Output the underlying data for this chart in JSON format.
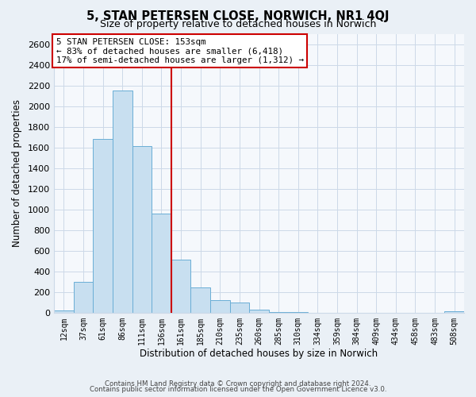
{
  "title": "5, STAN PETERSEN CLOSE, NORWICH, NR1 4QJ",
  "subtitle": "Size of property relative to detached houses in Norwich",
  "xlabel": "Distribution of detached houses by size in Norwich",
  "ylabel": "Number of detached properties",
  "bar_labels": [
    "12sqm",
    "37sqm",
    "61sqm",
    "86sqm",
    "111sqm",
    "136sqm",
    "161sqm",
    "185sqm",
    "210sqm",
    "235sqm",
    "260sqm",
    "285sqm",
    "310sqm",
    "334sqm",
    "359sqm",
    "384sqm",
    "409sqm",
    "434sqm",
    "458sqm",
    "483sqm",
    "508sqm"
  ],
  "bar_values": [
    20,
    295,
    1680,
    2150,
    1610,
    960,
    510,
    245,
    125,
    95,
    30,
    8,
    3,
    2,
    2,
    1,
    1,
    1,
    0,
    0,
    15
  ],
  "bar_color": "#c8dff0",
  "bar_edge_color": "#6aaed6",
  "vline_color": "#cc0000",
  "ylim": [
    0,
    2700
  ],
  "yticks": [
    0,
    200,
    400,
    600,
    800,
    1000,
    1200,
    1400,
    1600,
    1800,
    2000,
    2200,
    2400,
    2600
  ],
  "annotation_title": "5 STAN PETERSEN CLOSE: 153sqm",
  "annotation_line1": "← 83% of detached houses are smaller (6,418)",
  "annotation_line2": "17% of semi-detached houses are larger (1,312) →",
  "annotation_box_color": "#ffffff",
  "annotation_box_edge": "#cc0000",
  "footer1": "Contains HM Land Registry data © Crown copyright and database right 2024.",
  "footer2": "Contains public sector information licensed under the Open Government Licence v3.0.",
  "bg_color": "#eaf0f6",
  "plot_bg_color": "#f5f8fc",
  "grid_color": "#ccd9e8"
}
